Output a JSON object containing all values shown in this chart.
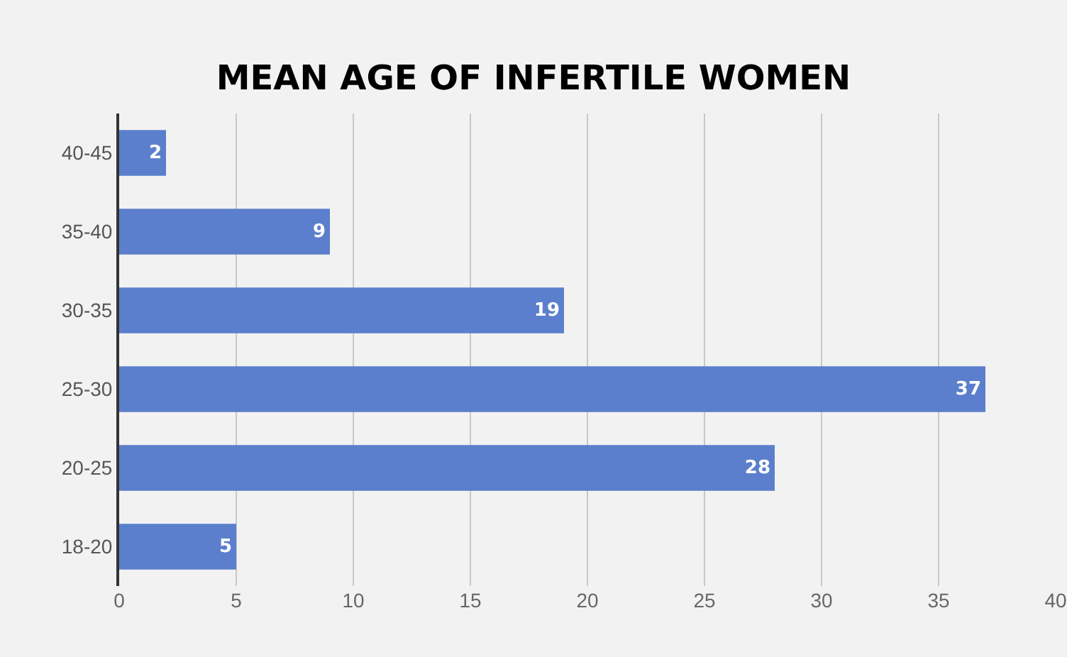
{
  "chart_data": {
    "type": "bar",
    "orientation": "horizontal",
    "title": "MEAN AGE OF INFERTILE WOMEN",
    "categories": [
      "40-45",
      "35-40",
      "30-35",
      "25-30",
      "20-25",
      "18-20"
    ],
    "values": [
      2,
      9,
      19,
      37,
      28,
      5
    ],
    "color": "#5b7fcc",
    "xlim": [
      0,
      40
    ],
    "xticks": [
      0,
      5,
      10,
      15,
      20,
      25,
      30,
      35,
      40
    ],
    "grid": "x",
    "data_labels": true
  }
}
